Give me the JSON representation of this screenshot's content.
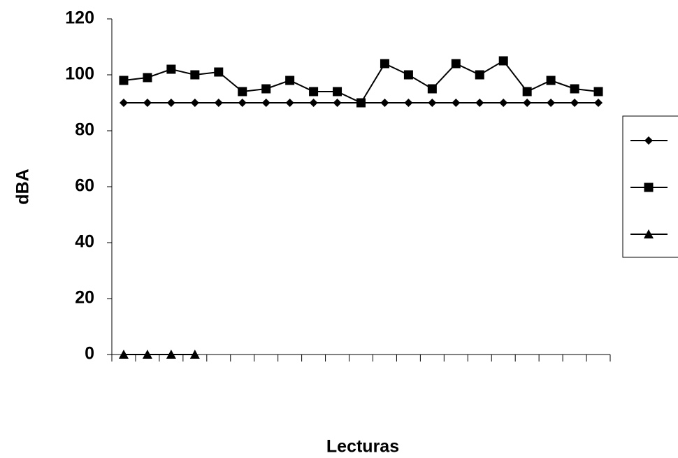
{
  "chart_data": {
    "type": "line",
    "y_label": "dBA",
    "x_label": "Lecturas",
    "categories": [
      null,
      null,
      null,
      null,
      null,
      null,
      null,
      null,
      null,
      null,
      null,
      null,
      null,
      null,
      null,
      null,
      null,
      null,
      null,
      null,
      null
    ],
    "series": [
      {
        "color": "#000000",
        "marker": "diamond",
        "values": [
          90,
          90,
          90,
          90,
          90,
          90,
          90,
          90,
          90,
          90,
          90,
          90,
          90,
          90,
          90,
          90,
          90,
          90,
          90,
          90,
          90
        ]
      },
      {
        "color": "#000000",
        "marker": "square",
        "values": [
          98,
          99,
          102,
          100,
          101,
          94,
          95,
          98,
          94,
          94,
          90,
          104,
          100,
          95,
          104,
          100,
          105,
          94,
          98,
          95,
          94
        ]
      },
      {
        "color": "#000000",
        "marker": "triangle",
        "values": [
          0,
          0,
          0,
          0,
          null,
          null,
          null,
          null,
          null,
          null,
          null,
          null,
          null,
          null,
          null,
          null,
          null,
          null,
          null,
          null,
          null
        ]
      }
    ],
    "ylim": [
      0,
      120
    ],
    "yticks": [
      0,
      20,
      40,
      60,
      80,
      100,
      120
    ],
    "legend": "right"
  }
}
